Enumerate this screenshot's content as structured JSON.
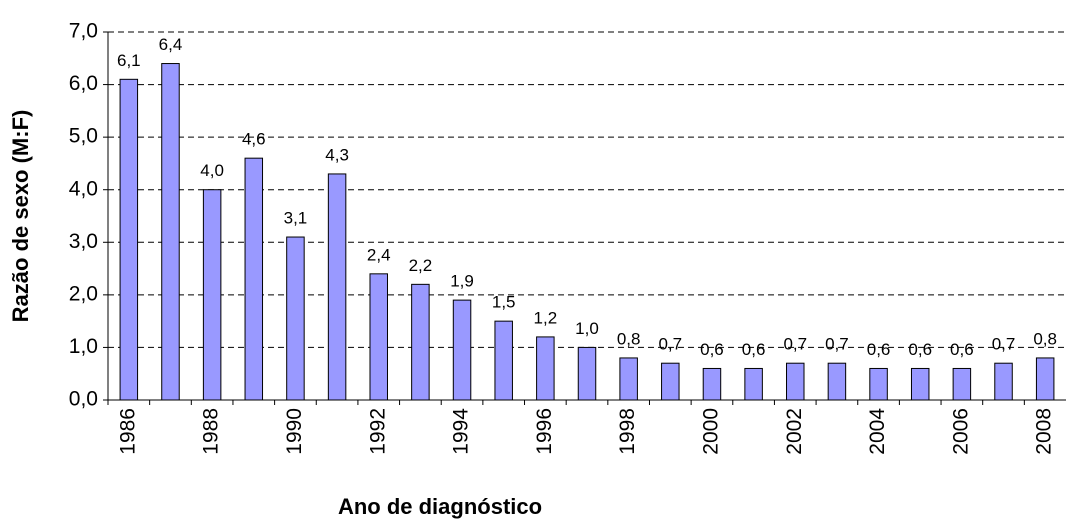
{
  "chart_data": {
    "type": "bar",
    "x_label": "Ano de diagnóstico",
    "y_label": "Razão de sexo (M:F)",
    "categories": [
      "1986",
      null,
      "1988",
      null,
      "1990",
      null,
      "1992",
      null,
      "1994",
      null,
      "1996",
      null,
      "1998",
      null,
      "2000",
      null,
      "2002",
      null,
      "2004",
      null,
      "2006",
      null,
      "2008"
    ],
    "values": [
      6.1,
      6.4,
      4.0,
      4.6,
      3.1,
      4.3,
      2.4,
      2.2,
      1.9,
      1.5,
      1.2,
      1.0,
      0.8,
      0.7,
      0.6,
      0.6,
      0.7,
      0.7,
      0.6,
      0.6,
      0.6,
      0.7,
      0.8
    ],
    "value_labels": [
      "6,1",
      "6,4",
      "4,0",
      "4,6",
      "3,1",
      "4,3",
      "2,4",
      "2,2",
      "1,9",
      "1,5",
      "1,2",
      "1,0",
      "0,8",
      "0,7",
      "0,6",
      "0,6",
      "0,7",
      "0,7",
      "0,6",
      "0,6",
      "0,6",
      "0,7",
      "0,8"
    ],
    "color": "#9999ff",
    "ylim": [
      0,
      7
    ],
    "yticks": [
      {
        "value": 0,
        "label": "0,0"
      },
      {
        "value": 1,
        "label": "1,0"
      },
      {
        "value": 2,
        "label": "2,0"
      },
      {
        "value": 3,
        "label": "3,0"
      },
      {
        "value": 4,
        "label": "4,0"
      },
      {
        "value": 5,
        "label": "5,0"
      },
      {
        "value": 6,
        "label": "6,0"
      },
      {
        "value": 7,
        "label": "7,0"
      }
    ],
    "grid": true
  }
}
